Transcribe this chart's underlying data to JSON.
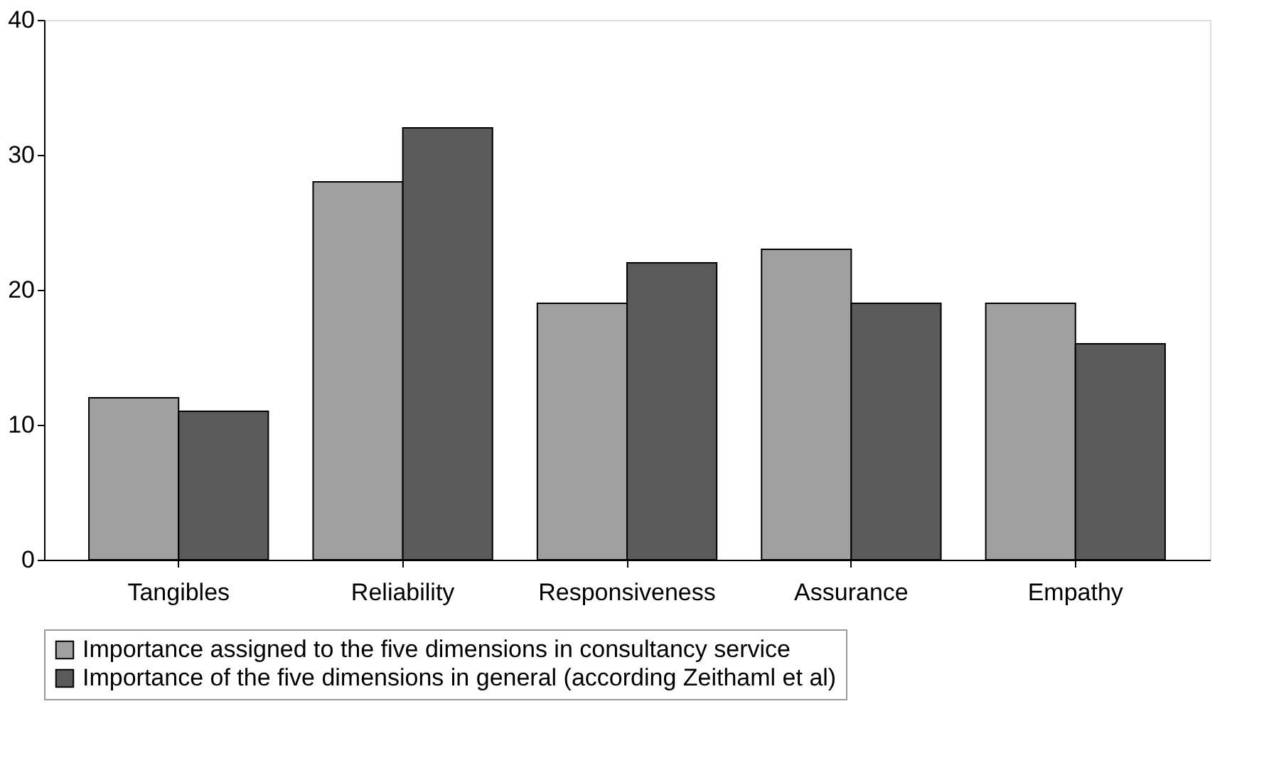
{
  "chart_data": {
    "type": "bar",
    "categories": [
      "Tangibles",
      "Reliability",
      "Responsiveness",
      "Assurance",
      "Empathy"
    ],
    "series": [
      {
        "name": "Importance assigned to the five dimensions in consultancy service",
        "color": "#a0a0a0",
        "values": [
          12,
          28,
          19,
          23,
          19
        ]
      },
      {
        "name": "Importance of the five dimensions in general (according Zeithaml et al)",
        "color": "#5a5a5a",
        "values": [
          11,
          32,
          22,
          19,
          16
        ]
      }
    ],
    "ylim": [
      0,
      40
    ],
    "yticks": [
      0,
      10,
      20,
      30,
      40
    ],
    "grid": false,
    "legend": "bottom"
  }
}
